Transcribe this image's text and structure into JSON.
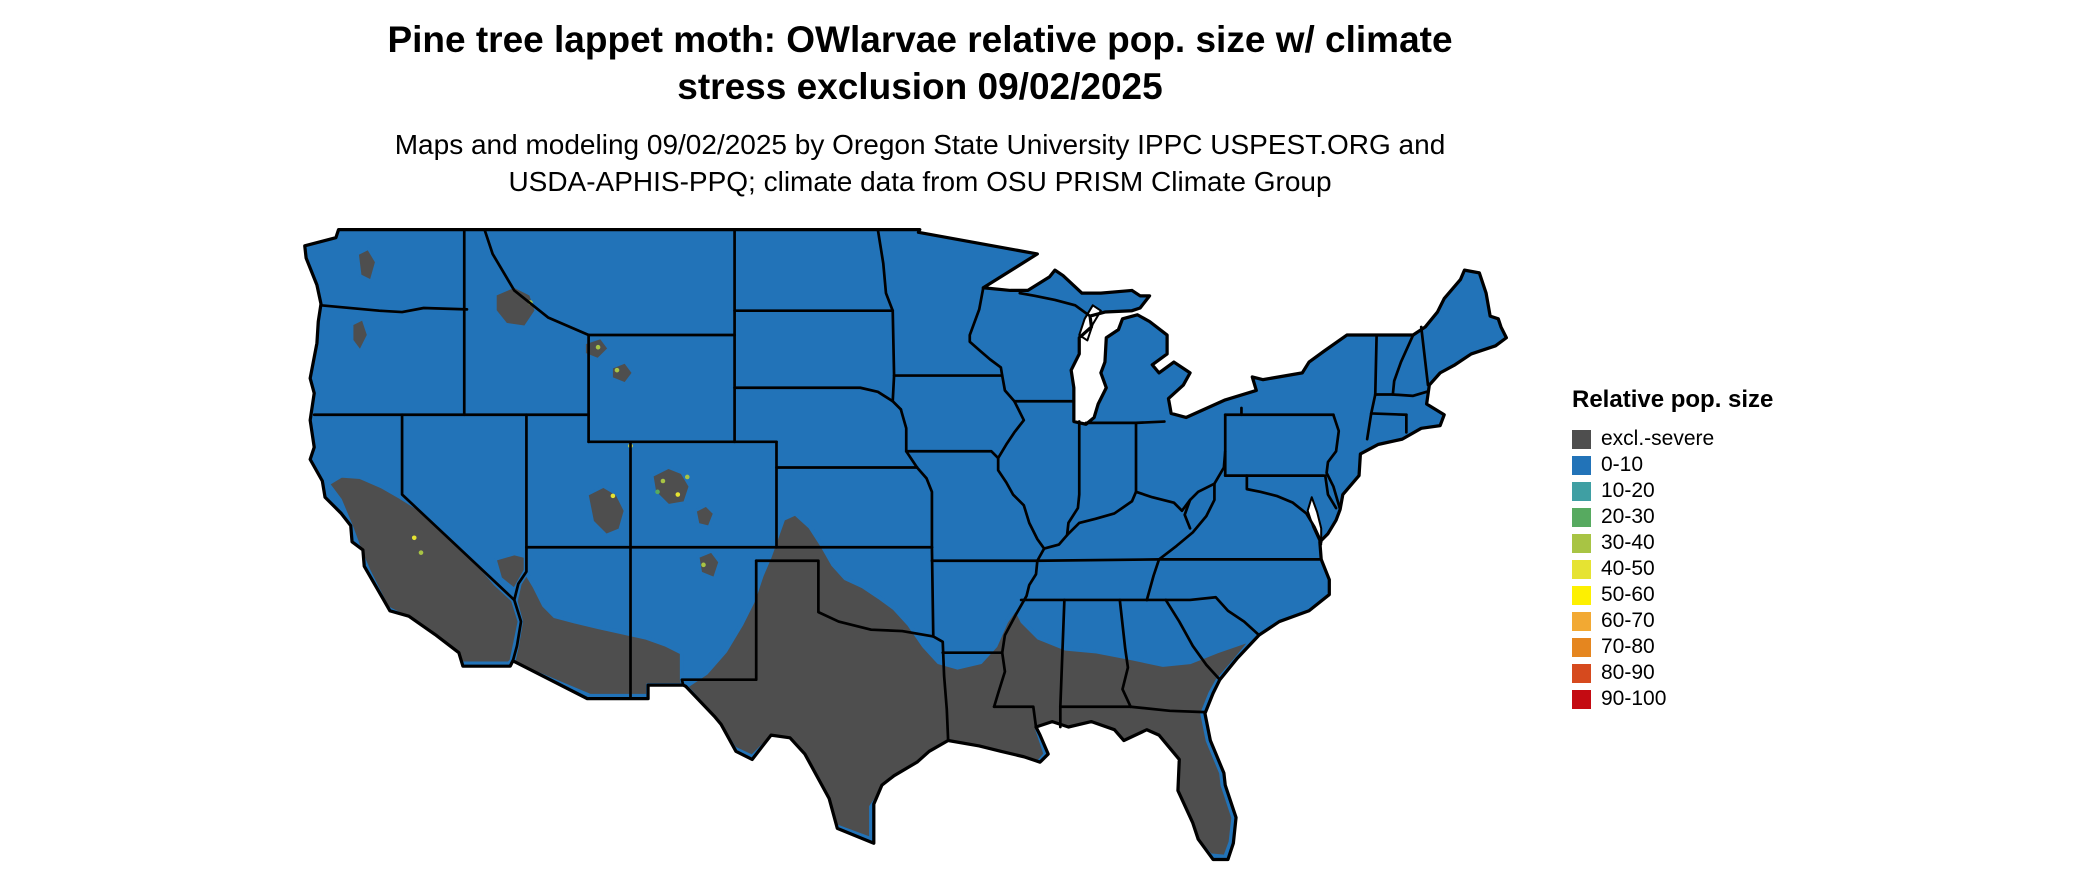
{
  "title": {
    "lines": [
      "Pine tree lappet moth: OWlarvae relative pop. size w/ climate",
      "stress exclusion 09/02/2025"
    ]
  },
  "subtitle": {
    "lines": [
      "Maps and modeling 09/02/2025 by Oregon State University IPPC USPEST.ORG and",
      "USDA-APHIS-PPQ; climate data from OSU PRISM Climate Group"
    ]
  },
  "legend": {
    "title": "Relative pop. size",
    "items": [
      {
        "label": "excl.-severe",
        "color": "#4e4e4e"
      },
      {
        "label": "0-10",
        "color": "#2273b8"
      },
      {
        "label": "10-20",
        "color": "#3f9fa3"
      },
      {
        "label": "20-30",
        "color": "#57aa60"
      },
      {
        "label": "30-40",
        "color": "#a8c444"
      },
      {
        "label": "40-50",
        "color": "#e6e332"
      },
      {
        "label": "50-60",
        "color": "#fdf001"
      },
      {
        "label": "60-70",
        "color": "#f2a933"
      },
      {
        "label": "70-80",
        "color": "#e5861f"
      },
      {
        "label": "80-90",
        "color": "#d64a1e"
      },
      {
        "label": "90-100",
        "color": "#c40b12"
      }
    ]
  },
  "map": {
    "colors": {
      "land": "#2273b8",
      "excl": "#4e4e4e",
      "border": "#000000",
      "water": "#ffffff"
    }
  }
}
